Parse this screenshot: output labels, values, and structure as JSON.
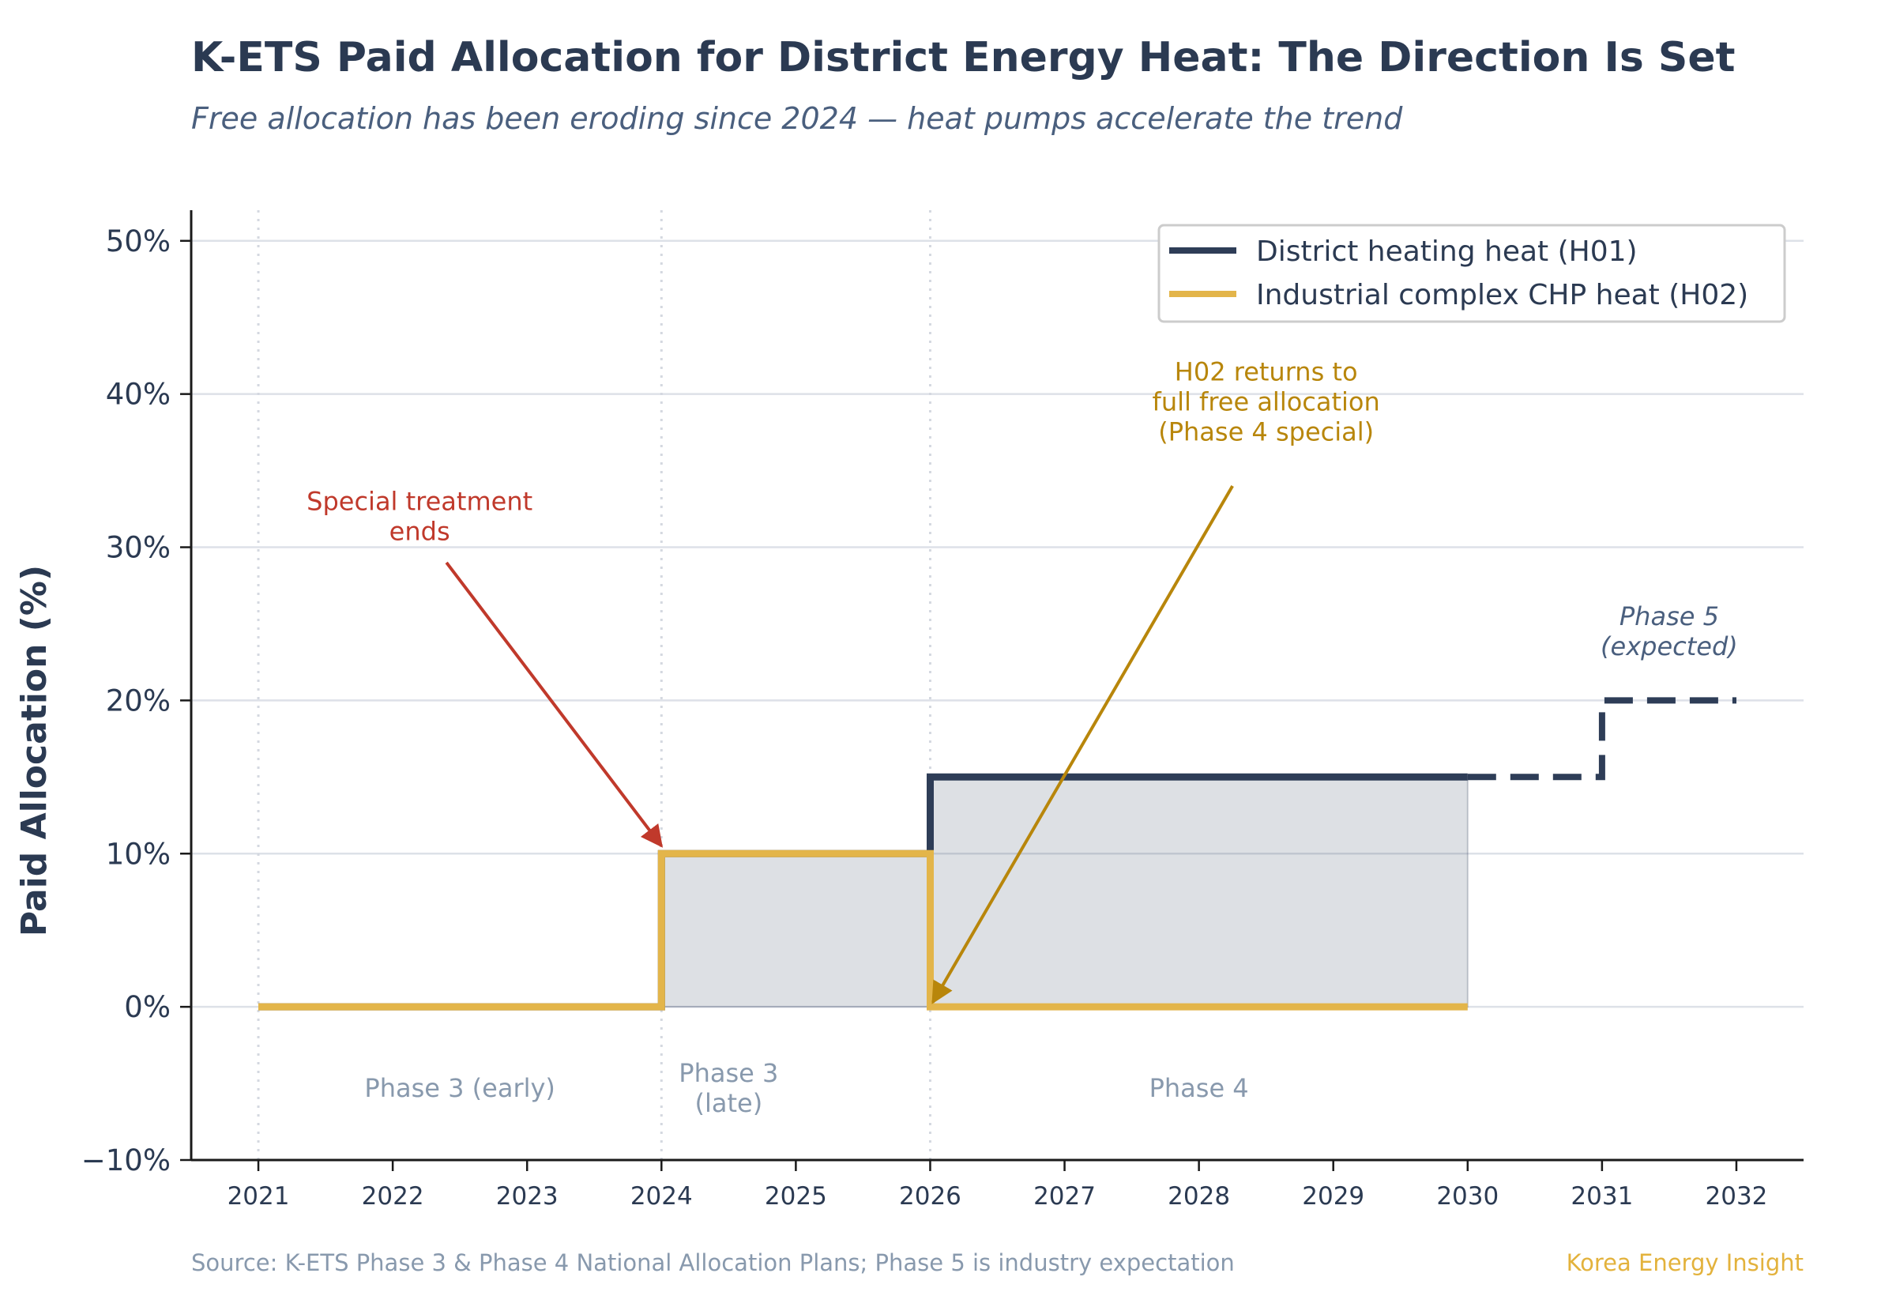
{
  "title": "K-ETS Paid Allocation for District Energy Heat: The Direction Is Set",
  "subtitle": "Free allocation has been eroding since 2024 — heat pumps accelerate the trend",
  "footer": {
    "source": "Source: K-ETS Phase 3 & Phase 4 National Allocation Plans; Phase 5 is industry expectation",
    "brand": "Korea Energy Insight"
  },
  "chart_data": {
    "type": "line",
    "step": "post",
    "title": "K-ETS Paid Allocation for District Energy Heat: The Direction Is Set",
    "xlabel": "",
    "ylabel": "Paid Allocation (%)",
    "xlim": [
      2020.5,
      2032.5
    ],
    "ylim": [
      -10,
      52
    ],
    "grid": "horizontal",
    "legend_position": "top-right",
    "x_ticks": [
      2021,
      2022,
      2023,
      2024,
      2025,
      2026,
      2027,
      2028,
      2029,
      2030,
      2031,
      2032
    ],
    "x_tick_labels": [
      "2021",
      "2022",
      "2023",
      "2024",
      "2025",
      "2026",
      "2027",
      "2028",
      "2029",
      "2030",
      "2031",
      "2032"
    ],
    "y_ticks": [
      -10,
      0,
      10,
      20,
      30,
      40,
      50
    ],
    "y_tick_labels": [
      "−10%",
      "0%",
      "10%",
      "20%",
      "30%",
      "40%",
      "50%"
    ],
    "phase_boundaries": [
      2021,
      2024,
      2026
    ],
    "series": [
      {
        "name": "District heating heat (H01)",
        "color": "#2e3d57",
        "x": [
          2021,
          2024,
          2026,
          2030
        ],
        "y": [
          0,
          10,
          15,
          15
        ],
        "projection": {
          "x": [
            2030,
            2031,
            2032
          ],
          "y": [
            15,
            20,
            20
          ]
        },
        "fill_to_zero": true
      },
      {
        "name": "Industrial complex CHP heat (H02)",
        "color": "#e3b54a",
        "x": [
          2021,
          2024,
          2026,
          2030
        ],
        "y": [
          0,
          10,
          0,
          0
        ]
      }
    ],
    "phase_labels": [
      {
        "text": [
          "Phase 3 (early)"
        ],
        "x": 2022.5,
        "y": -5.3
      },
      {
        "text": [
          "Phase 3",
          "(late)"
        ],
        "x": 2024.5,
        "y": -5.3
      },
      {
        "text": [
          "Phase 4"
        ],
        "x": 2028.0,
        "y": -5.3
      }
    ],
    "annotations": [
      {
        "text": [
          "Special treatment",
          "ends"
        ],
        "color": "#c0392b",
        "text_at": [
          2022.2,
          32
        ],
        "arrow_from": [
          2022.4,
          29
        ],
        "arrow_to": [
          2024.0,
          10.5
        ]
      },
      {
        "text": [
          "H02 returns to",
          "full free allocation",
          "(Phase 4 special)"
        ],
        "color": "#b8860b",
        "text_at": [
          2028.5,
          39.5
        ],
        "arrow_from": [
          2028.25,
          34
        ],
        "arrow_to": [
          2026.02,
          0.3
        ]
      },
      {
        "text": [
          "Phase 5",
          "(expected)"
        ],
        "style": "italic",
        "color": "#4a5f7e",
        "text_at": [
          2031.5,
          24.5
        ]
      }
    ]
  }
}
